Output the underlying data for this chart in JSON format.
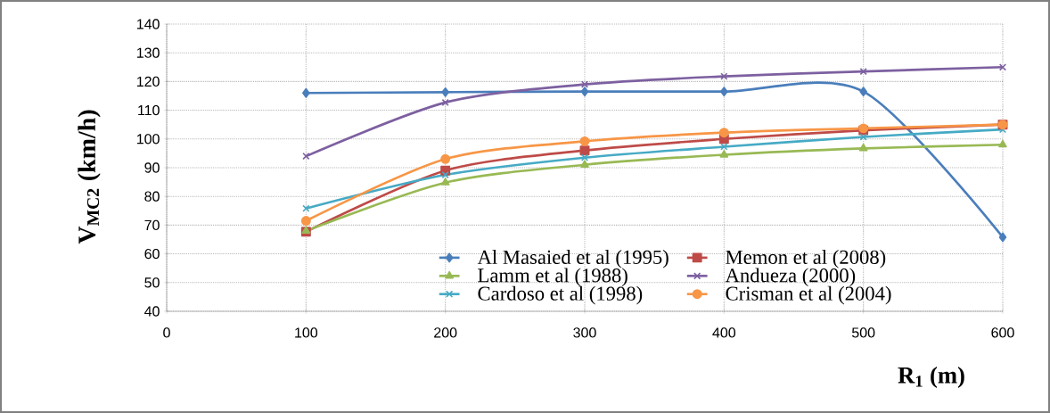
{
  "chart_data": {
    "type": "line",
    "xlabel": "**R$_{1}$ (m)**",
    "ylabel": "**V$_{MC2}$ (km/h)**",
    "x": [
      100,
      200,
      300,
      400,
      500,
      600
    ],
    "xlim": [
      0,
      600
    ],
    "xticks": [
      0,
      100,
      200,
      300,
      400,
      500,
      600
    ],
    "ylim": [
      40,
      140
    ],
    "yticks": [
      40,
      50,
      60,
      70,
      80,
      90,
      100,
      110,
      120,
      130,
      140
    ],
    "grid": true,
    "legend": "bottom right",
    "series": [
      {
        "name": "Al Masaied et al (1995)",
        "color": "#4a7ebb",
        "marker": "diamond",
        "values": [
          116,
          116.3,
          116.5,
          116.5,
          116.5,
          65.8
        ]
      },
      {
        "name": "Memon et al (2008)",
        "color": "#be4b48",
        "marker": "square",
        "values": [
          67.7,
          89,
          96,
          100,
          103,
          105
        ]
      },
      {
        "name": "Lamm et al (1988)",
        "color": "#98b954",
        "marker": "triangle",
        "values": [
          68,
          84.8,
          91,
          94.5,
          96.7,
          98
        ]
      },
      {
        "name": "Andueza (2000)",
        "color": "#7d60a0",
        "marker": "cross",
        "values": [
          94,
          112.7,
          119,
          121.8,
          123.5,
          125
        ]
      },
      {
        "name": "Cardoso et al (1998)",
        "color": "#46aac5",
        "marker": "cross",
        "values": [
          75.8,
          87.5,
          93.5,
          97.3,
          100.7,
          103.3
        ]
      },
      {
        "name": "Crisman et al (2004)",
        "color": "#f79646",
        "marker": "circle",
        "values": [
          71.5,
          93,
          99.2,
          102.2,
          103.7,
          105
        ]
      }
    ]
  }
}
